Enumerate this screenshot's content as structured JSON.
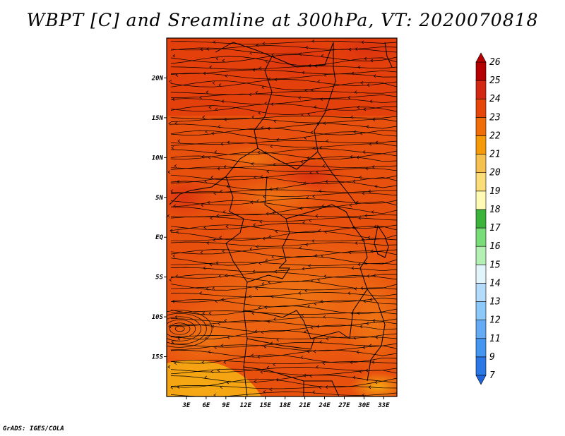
{
  "title": "WBPT [C] and Sreamline at 300hPa, VT: 2020070818",
  "credit": "GrADS: IGES/COLA",
  "chart_data": {
    "type": "heatmap",
    "title": "WBPT [C] and Sreamline at 300hPa, VT: 2020070818",
    "variable": "WBPT [C]",
    "level": "300hPa",
    "valid_time": "2020070818",
    "x_range": [
      0,
      35
    ],
    "y_range": [
      -20,
      25
    ],
    "x_ticks": [
      {
        "value": 3,
        "label": "3E"
      },
      {
        "value": 6,
        "label": "6E"
      },
      {
        "value": 9,
        "label": "9E"
      },
      {
        "value": 12,
        "label": "12E"
      },
      {
        "value": 15,
        "label": "15E"
      },
      {
        "value": 18,
        "label": "18E"
      },
      {
        "value": 21,
        "label": "21E"
      },
      {
        "value": 24,
        "label": "24E"
      },
      {
        "value": 27,
        "label": "27E"
      },
      {
        "value": 30,
        "label": "30E"
      },
      {
        "value": 33,
        "label": "33E"
      }
    ],
    "y_ticks": [
      {
        "value": 20,
        "label": "20N"
      },
      {
        "value": 15,
        "label": "15N"
      },
      {
        "value": 10,
        "label": "10N"
      },
      {
        "value": 5,
        "label": "5N"
      },
      {
        "value": 0,
        "label": "EQ"
      },
      {
        "value": -5,
        "label": "5S"
      },
      {
        "value": -10,
        "label": "10S"
      },
      {
        "value": -15,
        "label": "15S"
      }
    ],
    "colorbar": {
      "levels": [
        7,
        9,
        11,
        12,
        13,
        14,
        15,
        16,
        17,
        18,
        19,
        20,
        21,
        22,
        23,
        24,
        25,
        26
      ],
      "colors": [
        "#1e64dc",
        "#2c78e6",
        "#4496f0",
        "#64aaf5",
        "#8cc8fa",
        "#b4dcfa",
        "#e1f5fa",
        "#b4f0b4",
        "#78dc78",
        "#3cb43c",
        "#fffab4",
        "#fadc78",
        "#f5c050",
        "#f59b0a",
        "#f06e0a",
        "#e6460a",
        "#d22814",
        "#b40000"
      ]
    },
    "field_regions": [
      {
        "description": "northern Sahel band",
        "value": 24
      },
      {
        "description": "central Africa",
        "value": 23
      },
      {
        "description": "southern interior",
        "value": 22
      },
      {
        "description": "southwest corner",
        "value": 21
      }
    ],
    "streamline_flow": "predominantly westward (easterly winds) with a cyclonic eddy near 0-2E, 10-13S"
  }
}
